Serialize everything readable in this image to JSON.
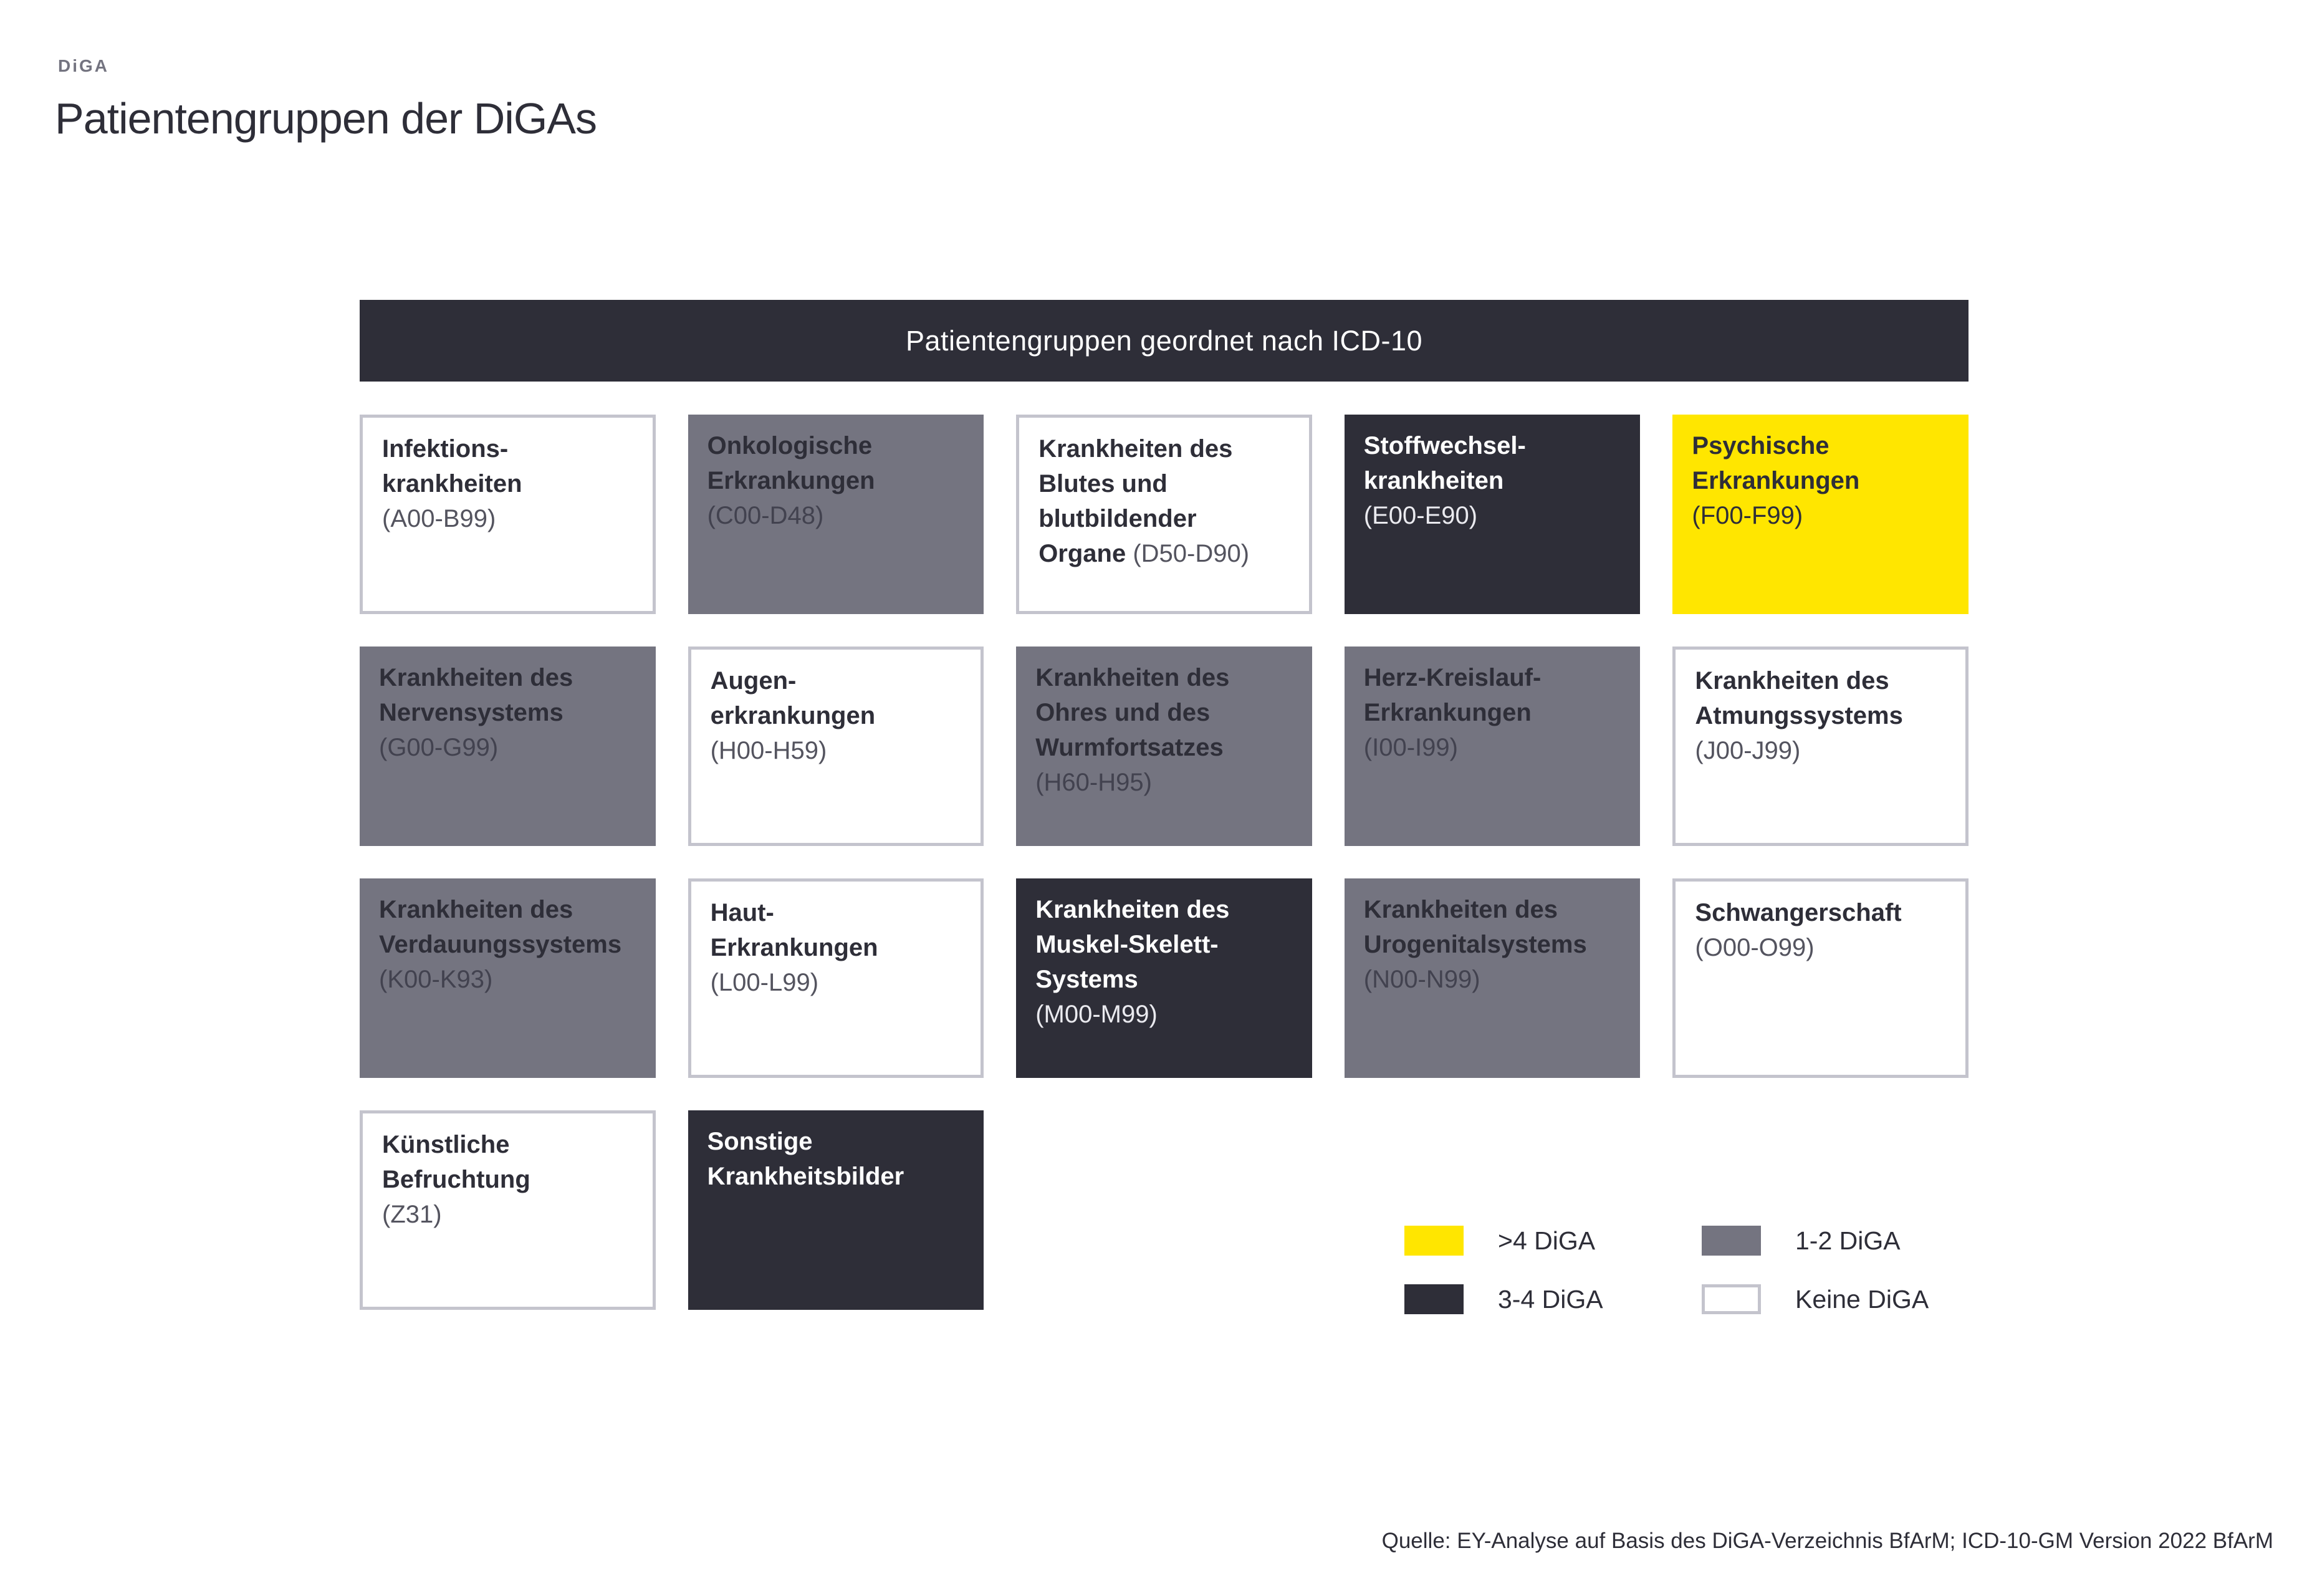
{
  "header": {
    "eyebrow": "DiGA",
    "title": "Patientengruppen der DiGAs"
  },
  "banner": {
    "label": "Patientengruppen geordnet nach ICD-10"
  },
  "styles": {
    "none": {
      "bg": "#ffffff",
      "border": "#c4c4cd",
      "title": "#2e2e38",
      "code": "#54545f"
    },
    "gray": {
      "bg": "#747480",
      "border": "",
      "title": "#2e2e38",
      "code": "#42424f"
    },
    "dark": {
      "bg": "#2e2e38",
      "border": "",
      "title": "#ffffff",
      "code": "#eaeaef"
    },
    "yellow": {
      "bg": "#ffe600",
      "border": "",
      "title": "#2e2e38",
      "code": "#2e2e38"
    }
  },
  "tiles": [
    {
      "slug": "infektionskrankheiten-a00-b99",
      "category": "none",
      "lines": [
        {
          "b": "Infektions-"
        },
        {
          "b": "krankheiten"
        },
        {
          "c": "(A00-B99)"
        }
      ]
    },
    {
      "slug": "onkologische-erkrankungen-c00-d48",
      "category": "gray",
      "lines": [
        {
          "b": "Onkologische"
        },
        {
          "b": "Erkrankungen"
        },
        {
          "c": "(C00-D48)"
        }
      ]
    },
    {
      "slug": "krankheiten-des-blutes-d50-d90",
      "category": "none",
      "lines": [
        {
          "b": "Krankheiten des"
        },
        {
          "b": "Blutes und"
        },
        {
          "b": "blutbildender"
        },
        {
          "b": "Organe ",
          "c": "(D50-D90)"
        }
      ]
    },
    {
      "slug": "stoffwechselkrankheiten-e00-e90",
      "category": "dark",
      "lines": [
        {
          "b": "Stoffwechsel-"
        },
        {
          "b": "krankheiten"
        },
        {
          "c": "(E00-E90)"
        }
      ]
    },
    {
      "slug": "psychische-erkrankungen-f00-f99",
      "category": "yellow",
      "lines": [
        {
          "b": "Psychische"
        },
        {
          "b": "Erkrankungen"
        },
        {
          "c": "(F00-F99)"
        }
      ]
    },
    {
      "slug": "krankheiten-des-nervensystems-g00-g99",
      "category": "gray",
      "lines": [
        {
          "b": "Krankheiten des"
        },
        {
          "b": "Nervensystems"
        },
        {
          "c": "(G00-G99)"
        }
      ]
    },
    {
      "slug": "augenerkrankungen-h00-h59",
      "category": "none",
      "lines": [
        {
          "b": "Augen-"
        },
        {
          "b": "erkrankungen"
        },
        {
          "c": "(H00-H59)"
        }
      ]
    },
    {
      "slug": "krankheiten-des-ohres-h60-h95",
      "category": "gray",
      "lines": [
        {
          "b": "Krankheiten des"
        },
        {
          "b": "Ohres und des"
        },
        {
          "b": "Wurmfortsatzes"
        },
        {
          "c": "(H60-H95)"
        }
      ]
    },
    {
      "slug": "herz-kreislauf-erkrankungen-i00-i99",
      "category": "gray",
      "lines": [
        {
          "b": "Herz-Kreislauf-"
        },
        {
          "b": "Erkrankungen"
        },
        {
          "c": "(I00-I99)"
        }
      ]
    },
    {
      "slug": "krankheiten-des-atmungssystems-j00-j99",
      "category": "none",
      "lines": [
        {
          "b": "Krankheiten des"
        },
        {
          "b": "Atmungssystems"
        },
        {
          "c": "(J00-J99)"
        }
      ]
    },
    {
      "slug": "krankheiten-des-verdauungssystems-k00-k93",
      "category": "gray",
      "lines": [
        {
          "b": "Krankheiten des"
        },
        {
          "b": "Verdauungssystems"
        },
        {
          "c": "(K00-K93)"
        }
      ]
    },
    {
      "slug": "haut-erkrankungen-l00-l99",
      "category": "none",
      "lines": [
        {
          "b": "Haut-"
        },
        {
          "b": "Erkrankungen"
        },
        {
          "c": "(L00-L99)"
        }
      ]
    },
    {
      "slug": "krankheiten-muskel-skelett-m00-m99",
      "category": "dark",
      "lines": [
        {
          "b": "Krankheiten des"
        },
        {
          "b": "Muskel-Skelett-"
        },
        {
          "b": "Systems"
        },
        {
          "c": "(M00-M99)"
        }
      ]
    },
    {
      "slug": "krankheiten-des-urogenitalsystems-n00-n99",
      "category": "gray",
      "lines": [
        {
          "b": "Krankheiten des"
        },
        {
          "b": "Urogenitalsystems"
        },
        {
          "c": "(N00-N99)"
        }
      ]
    },
    {
      "slug": "schwangerschaft-o00-o99",
      "category": "none",
      "lines": [
        {
          "b": "Schwangerschaft"
        },
        {
          "c": "(O00-O99)"
        }
      ]
    },
    {
      "slug": "kuenstliche-befruchtung-z31",
      "category": "none",
      "lines": [
        {
          "b": "Künstliche"
        },
        {
          "b": "Befruchtung"
        },
        {
          "c": "(Z31)"
        }
      ]
    },
    {
      "slug": "sonstige-krankheitsbilder",
      "category": "dark",
      "lines": [
        {
          "b": "Sonstige"
        },
        {
          "b": "Krankheitsbilder"
        }
      ]
    }
  ],
  "legend": {
    "items": [
      {
        "label": ">4 DiGA",
        "category": "yellow",
        "slug": "gt4-diga"
      },
      {
        "label": "1-2 DiGA",
        "category": "gray",
        "slug": "1-2-diga"
      },
      {
        "label": "3-4 DiGA",
        "category": "dark",
        "slug": "3-4-diga"
      },
      {
        "label": "Keine DiGA",
        "category": "none",
        "slug": "keine-diga"
      }
    ]
  },
  "source": {
    "note": "Quelle: EY-Analyse auf Basis des DiGA-Verzeichnis BfArM; ICD-10-GM Version 2022 BfArM"
  }
}
